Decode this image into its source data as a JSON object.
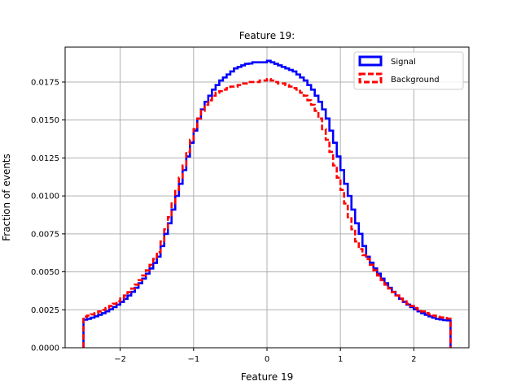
{
  "chart_data": {
    "type": "step-histogram",
    "title": "Feature 19:",
    "xlabel": "Feature 19",
    "ylabel": "Fraction of events",
    "xlim": [
      -2.75,
      2.75
    ],
    "ylim": [
      0.0,
      0.0198
    ],
    "xticks": [
      -2,
      -1,
      0,
      1,
      2
    ],
    "xtick_labels": [
      "−2",
      "−1",
      "0",
      "1",
      "2"
    ],
    "yticks": [
      0.0,
      0.0025,
      0.005,
      0.0075,
      0.01,
      0.0125,
      0.015,
      0.0175
    ],
    "ytick_labels": [
      "0.0000",
      "0.0025",
      "0.0050",
      "0.0075",
      "0.0100",
      "0.0125",
      "0.0150",
      "0.0175"
    ],
    "grid": true,
    "legend_position": "top-right",
    "bin_range": [
      -2.5,
      2.5
    ],
    "series": [
      {
        "name": "Signal",
        "color": "#0000ff",
        "linestyle": "solid",
        "values": [
          0.00185,
          0.0019,
          0.00198,
          0.00207,
          0.00217,
          0.00228,
          0.0024,
          0.00253,
          0.00268,
          0.00284,
          0.00302,
          0.00322,
          0.00344,
          0.00368,
          0.00395,
          0.00425,
          0.00455,
          0.00488,
          0.00522,
          0.00559,
          0.006,
          0.0067,
          0.0075,
          0.0082,
          0.0091,
          0.01,
          0.0108,
          0.0117,
          0.0126,
          0.0135,
          0.0143,
          0.0151,
          0.0157,
          0.0162,
          0.0166,
          0.017,
          0.0173,
          0.0176,
          0.0178,
          0.018,
          0.0182,
          0.0184,
          0.0185,
          0.0186,
          0.0187,
          0.01872,
          0.0188,
          0.0188,
          0.0188,
          0.0188,
          0.0189,
          0.0188,
          0.0187,
          0.0186,
          0.0185,
          0.0184,
          0.0183,
          0.0182,
          0.018,
          0.0178,
          0.0176,
          0.0173,
          0.017,
          0.0166,
          0.0162,
          0.0157,
          0.0151,
          0.0143,
          0.0135,
          0.0126,
          0.0117,
          0.0108,
          0.01,
          0.0091,
          0.0082,
          0.0075,
          0.0067,
          0.006,
          0.0056,
          0.00522,
          0.00488,
          0.00455,
          0.00425,
          0.00395,
          0.00368,
          0.00344,
          0.00322,
          0.00302,
          0.00284,
          0.00268,
          0.00253,
          0.0024,
          0.00228,
          0.00217,
          0.00207,
          0.00198,
          0.0019,
          0.00186,
          0.00182,
          0.0018
        ]
      },
      {
        "name": "Background",
        "color": "#ff0000",
        "linestyle": "dashed",
        "values": [
          0.00205,
          0.00212,
          0.0022,
          0.00229,
          0.00239,
          0.0025,
          0.00262,
          0.00275,
          0.0029,
          0.00306,
          0.00324,
          0.00344,
          0.00366,
          0.0039,
          0.00416,
          0.00445,
          0.00476,
          0.0051,
          0.00546,
          0.00585,
          0.0063,
          0.007,
          0.0078,
          0.0086,
          0.0095,
          0.0104,
          0.0112,
          0.012,
          0.0129,
          0.0137,
          0.0144,
          0.0151,
          0.0156,
          0.016,
          0.0163,
          0.0166,
          0.0168,
          0.0169,
          0.017,
          0.0171,
          0.0172,
          0.0172,
          0.0173,
          0.0174,
          0.0174,
          0.0175,
          0.0175,
          0.0175,
          0.0176,
          0.0176,
          0.0177,
          0.0176,
          0.0175,
          0.0174,
          0.0174,
          0.0173,
          0.0172,
          0.0171,
          0.017,
          0.0168,
          0.0166,
          0.0163,
          0.016,
          0.0156,
          0.0151,
          0.0144,
          0.0137,
          0.0129,
          0.012,
          0.0112,
          0.0104,
          0.0095,
          0.0086,
          0.0078,
          0.007,
          0.0065,
          0.0061,
          0.00585,
          0.00546,
          0.0051,
          0.00476,
          0.00445,
          0.00416,
          0.0039,
          0.00366,
          0.00344,
          0.00324,
          0.00306,
          0.0029,
          0.00275,
          0.00262,
          0.0025,
          0.00239,
          0.00229,
          0.0022,
          0.00212,
          0.00205,
          0.002,
          0.00196,
          0.00192
        ]
      }
    ]
  }
}
